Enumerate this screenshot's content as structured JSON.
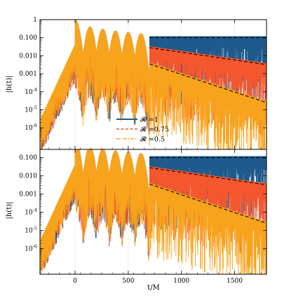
{
  "chart_data": [
    {
      "type": "line",
      "panel": "top",
      "ylabel": "|h(t)|",
      "xlabel": "",
      "xlim": [
        -330,
        1800
      ],
      "ylim_log10": [
        -7,
        0
      ],
      "ylog": true,
      "x_ticks": [
        0,
        500,
        1000,
        1500
      ],
      "y_ticks": [
        {
          "value": 1,
          "label": "1"
        },
        {
          "value": 0.1,
          "label": "0.100"
        },
        {
          "value": 0.01,
          "label": "0.010"
        },
        {
          "value": 0.001,
          "label": "0.001"
        },
        {
          "value": 0.0001,
          "label": "10-4"
        },
        {
          "value": 1e-05,
          "label": "10-5"
        },
        {
          "value": 1e-06,
          "label": "10-6"
        }
      ],
      "grid": true,
      "legend": {
        "placement": "lower-center",
        "entries": [
          {
            "label": "𝓡 =1",
            "color": "#1f5a8c",
            "style": "solid"
          },
          {
            "label": "𝓡 =0.75",
            "color": "#f4572e",
            "style": "dashed"
          },
          {
            "label": "𝓡 =0.5",
            "color": "#f8a31c",
            "style": "dashdot"
          }
        ]
      },
      "peak": {
        "t": 0,
        "value": 1.0
      },
      "ringing": [
        {
          "t": 140,
          "value": 0.4
        },
        {
          "t": 260,
          "value": 0.3
        },
        {
          "t": 380,
          "value": 0.24
        },
        {
          "t": 500,
          "value": 0.2
        },
        {
          "t": 620,
          "value": 0.17
        }
      ],
      "reference_lines": [
        {
          "style": "dashed",
          "points": [
            [
              700,
              0.1
            ],
            [
              1800,
              0.1
            ]
          ]
        },
        {
          "style": "dashed",
          "points": [
            [
              700,
              0.028
            ],
            [
              1800,
              0.0032
            ]
          ]
        },
        {
          "style": "dashed",
          "points": [
            [
              700,
              0.0035
            ],
            [
              1800,
              2.5e-05
            ]
          ]
        }
      ],
      "late_time_levels": [
        {
          "series": "𝓡 =1",
          "from": [
            700,
            0.1
          ],
          "to": [
            1800,
            0.1
          ]
        },
        {
          "series": "𝓡 =0.75",
          "from": [
            700,
            0.028
          ],
          "to": [
            1800,
            0.0032
          ]
        },
        {
          "series": "𝓡 =0.5",
          "from": [
            700,
            0.0035
          ],
          "to": [
            1800,
            2.5e-05
          ]
        }
      ]
    },
    {
      "type": "line",
      "panel": "bottom",
      "ylabel": "|h(t)|",
      "xlabel": "t/M",
      "xlim": [
        -330,
        1800
      ],
      "ylim_log10": [
        -7,
        0
      ],
      "ylog": true,
      "x_ticks": [
        {
          "value": 0,
          "label": "0"
        },
        {
          "value": 500,
          "label": "500"
        },
        {
          "value": 1000,
          "label": "1000"
        },
        {
          "value": 1500,
          "label": "1500"
        }
      ],
      "y_ticks": [
        {
          "value": 0.1,
          "label": "0.100"
        },
        {
          "value": 0.01,
          "label": "0.010"
        },
        {
          "value": 0.001,
          "label": "0.001"
        },
        {
          "value": 0.0001,
          "label": "10-4"
        },
        {
          "value": 1e-05,
          "label": "10-5"
        },
        {
          "value": 1e-06,
          "label": "10-6"
        }
      ],
      "grid": true,
      "peak": {
        "t": 0,
        "value": 1.0
      },
      "ringing": [
        {
          "t": 140,
          "value": 0.4
        },
        {
          "t": 260,
          "value": 0.3
        },
        {
          "t": 380,
          "value": 0.24
        },
        {
          "t": 500,
          "value": 0.2
        },
        {
          "t": 620,
          "value": 0.17
        }
      ],
      "reference_lines": [
        {
          "style": "dashed",
          "points": [
            [
              700,
              0.1
            ],
            [
              1800,
              0.1
            ]
          ]
        },
        {
          "style": "dashed",
          "points": [
            [
              700,
              0.028
            ],
            [
              1800,
              0.0032
            ]
          ]
        },
        {
          "style": "dashed",
          "points": [
            [
              700,
              0.0035
            ],
            [
              1800,
              2.5e-05
            ]
          ]
        }
      ],
      "late_time_levels": [
        {
          "series": "𝓡 =1",
          "from": [
            700,
            0.1
          ],
          "to": [
            1800,
            0.1
          ]
        },
        {
          "series": "𝓡 =0.75",
          "from": [
            700,
            0.028
          ],
          "to": [
            1800,
            0.0032
          ]
        },
        {
          "series": "𝓡 =0.5",
          "from": [
            700,
            0.0035
          ],
          "to": [
            1800,
            2.5e-05
          ]
        }
      ]
    }
  ],
  "colors": {
    "blue": "#1f5a8c",
    "red": "#f4572e",
    "orange": "#f8a31c"
  }
}
